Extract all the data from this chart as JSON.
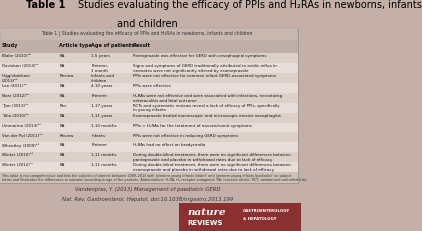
{
  "table_title": "Table 1 | Studies evaluating the efficacy of PPIs and H₂RAs in newborns, infants and children",
  "headers": [
    "Study",
    "Article type",
    "Age of patients",
    "Result"
  ],
  "rows": [
    [
      "Blake (2010)²⁶",
      "RA",
      "1-5 years",
      "Pantoprazole was effective for GERD with oesophageal symptoms"
    ],
    [
      "Davidson (2013)²⁷",
      "RA",
      "Preterm-\n1 month",
      "Signs and symptoms of GERD traditionally attributed to acidic reflux in\nneonates were not significantly altered by esomeprazole"
    ],
    [
      "Higginbotham\n(2013)²⁸",
      "Review",
      "Infants and\nchildren",
      "PPIs were not effective for common infant GERD-associated symptoms"
    ],
    [
      "Lee (2011)²⁹",
      "RA",
      "4-10 years",
      "PPIs were effective"
    ],
    [
      "Noni (2012)³⁰",
      "RA",
      "Preterm",
      "H₂RAs were not effective and were associated with infections, necrotizing\nenterocolitis and fetal outcome"
    ],
    [
      "Tjon (2013)³¹",
      "Rev",
      "1-17 years",
      "RCTs and systematic reviews reveal a lack of efficacy of PPIs, specifically\nin young infants"
    ],
    [
      "Tolia (2010)³²",
      "RA",
      "1-11 years",
      "Esomeprazole healed macroscopic and microscopic erosive oesophagitis"
    ],
    [
      "Ummarino (2013)³³",
      "RA",
      "1-10 months",
      "PPIs > H₂RAs for the treatment of nausea/vomit symptoms"
    ],
    [
      "Van der Pol (2011)³⁴",
      "Review",
      "Infants",
      "PPIs were not effective in reducing GERD symptoms"
    ],
    [
      "Wheatley (2009)³⁵",
      "RA",
      "Preterm",
      "H₂RAs had no effect on bradycardia"
    ],
    [
      "Winter (2010)³⁶",
      "RA",
      "1-11 months",
      "During double-blind treatment, there were no significant differences between\npantoprazole and placebo in withdrawal rates due to lack of efficacy"
    ],
    [
      "Winter (2012)³⁷",
      "RA",
      "1-11 months",
      "During double-blind treatment, there were no significant differences between\nesomeprazole and placebo in withdrawal rates due to lack of efficacy"
    ]
  ],
  "footnote": "This table is not comprehensive and lists the subjects of interest between 2009–2013 with 'preterm young infants (older)' and 'preterm young infants (pediatric)' as subject\nterms and illustrates the differences in outcome according to age of the patients. Abbreviations: H₂RA, H₂-receptor antagonist; RA, research article; RCT, randomized controlled trial.",
  "citation_line1": "Vandenplas, Y. (2013) Management of paediatric GERD",
  "citation_line2": "Nat. Rev. Gastroenterol. Hepatol. doi:10.1038/nrgastro.2013.199",
  "bg_color": "#c4b0a8",
  "table_bg": "#ddd0c8",
  "table_header_color": "#c0afa8",
  "row_colors": [
    "#ddd0c8",
    "#e8ddd8"
  ],
  "inner_title_bg": "#c8b8b0",
  "logo_bg": "#8b3030",
  "title_bold": "Table 1",
  "title_normal": " Studies evaluating the efficacy of PPIs and H₂RAs in newborns, infants\nand children"
}
